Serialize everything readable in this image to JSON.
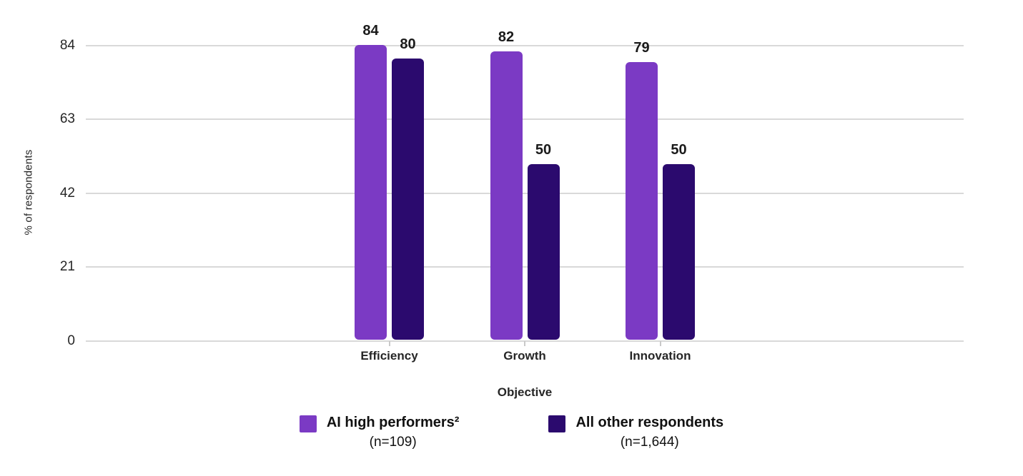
{
  "chart_data": {
    "type": "bar",
    "title": "",
    "categories": [
      "Efficiency",
      "Growth",
      "Innovation"
    ],
    "series": [
      {
        "name": "AI high performers²",
        "sample_size_label": "(n=109)",
        "color": "#7B3AC4",
        "values": [
          84,
          82,
          79
        ]
      },
      {
        "name": "All other respondents",
        "sample_size_label": "(n=1,644)",
        "color": "#2B0A6E",
        "values": [
          80,
          50,
          50
        ]
      }
    ],
    "xlabel": "Objective",
    "ylabel": "% of respondents",
    "yticks": [
      0,
      21,
      42,
      63,
      84
    ],
    "ylim": [
      0,
      84
    ],
    "grid": true,
    "value_labels": true,
    "legend_position": "bottom",
    "grid_color": "#d9d9d9"
  }
}
